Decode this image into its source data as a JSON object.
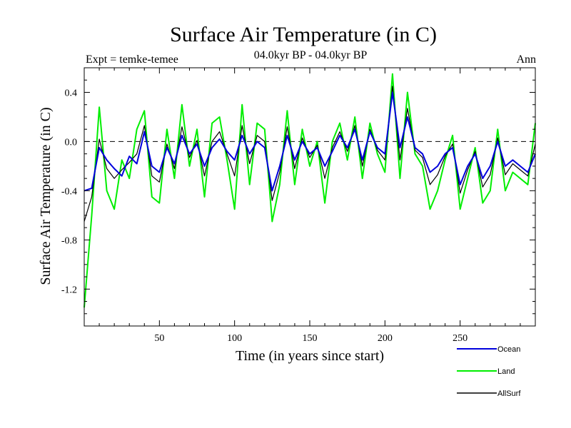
{
  "chart_data": {
    "type": "line",
    "title": "Surface Air Temperature (in C)",
    "subtitle": "04.0kyr BP - 04.0kyr BP",
    "left_label": "Expt = temke-temee",
    "right_label": "Ann",
    "xlabel": "Time (in years since start)",
    "ylabel": "Surface Air Temperature (in C)",
    "xlim": [
      0,
      300
    ],
    "ylim": [
      -1.5,
      0.6
    ],
    "xticks": [
      50,
      100,
      150,
      200,
      250
    ],
    "yticks": [
      0.4,
      0.0,
      -0.4,
      -0.8,
      -1.2
    ],
    "ytick_labels": [
      "0.4",
      "0.0",
      "-0.4",
      "-0.8",
      "-1.2"
    ],
    "reference_line": 0.0,
    "legend_position": "bottom-right",
    "series": [
      {
        "name": "Ocean",
        "color": "#0000dd",
        "x": [
          0,
          5,
          10,
          15,
          20,
          25,
          30,
          35,
          40,
          45,
          50,
          55,
          60,
          65,
          70,
          75,
          80,
          85,
          90,
          95,
          100,
          105,
          110,
          115,
          120,
          125,
          130,
          135,
          140,
          145,
          150,
          155,
          160,
          165,
          170,
          175,
          180,
          185,
          190,
          195,
          200,
          205,
          210,
          215,
          220,
          225,
          230,
          235,
          240,
          245,
          250,
          255,
          260,
          265,
          270,
          275,
          280,
          285,
          290,
          295,
          300
        ],
        "values": [
          -0.4,
          -0.38,
          -0.05,
          -0.15,
          -0.22,
          -0.28,
          -0.12,
          -0.18,
          0.08,
          -0.2,
          -0.25,
          -0.05,
          -0.18,
          0.05,
          -0.1,
          -0.02,
          -0.2,
          -0.05,
          0.02,
          -0.08,
          -0.15,
          0.05,
          -0.1,
          0.0,
          -0.05,
          -0.4,
          -0.2,
          0.05,
          -0.15,
          0.0,
          -0.1,
          -0.05,
          -0.2,
          -0.08,
          0.05,
          -0.05,
          0.1,
          -0.15,
          0.08,
          -0.05,
          -0.1,
          0.4,
          -0.05,
          0.2,
          -0.05,
          -0.1,
          -0.25,
          -0.2,
          -0.1,
          -0.05,
          -0.35,
          -0.2,
          -0.1,
          -0.3,
          -0.2,
          0.0,
          -0.2,
          -0.15,
          -0.2,
          -0.25,
          -0.1
        ]
      },
      {
        "name": "Land",
        "color": "#00ee00",
        "x": [
          0,
          5,
          10,
          15,
          20,
          25,
          30,
          35,
          40,
          45,
          50,
          55,
          60,
          65,
          70,
          75,
          80,
          85,
          90,
          95,
          100,
          105,
          110,
          115,
          120,
          125,
          130,
          135,
          140,
          145,
          150,
          155,
          160,
          165,
          170,
          175,
          180,
          185,
          190,
          195,
          200,
          205,
          210,
          215,
          220,
          225,
          230,
          235,
          240,
          245,
          250,
          255,
          260,
          265,
          270,
          275,
          280,
          285,
          290,
          295,
          300
        ],
        "values": [
          -1.35,
          -0.6,
          0.28,
          -0.4,
          -0.55,
          -0.15,
          -0.3,
          0.1,
          0.25,
          -0.45,
          -0.5,
          0.1,
          -0.3,
          0.3,
          -0.2,
          0.1,
          -0.45,
          0.15,
          0.2,
          -0.15,
          -0.55,
          0.3,
          -0.35,
          0.15,
          0.1,
          -0.65,
          -0.35,
          0.25,
          -0.35,
          0.1,
          -0.2,
          0.0,
          -0.5,
          0.0,
          0.15,
          -0.15,
          0.2,
          -0.3,
          0.15,
          -0.1,
          -0.25,
          0.55,
          -0.3,
          0.4,
          -0.1,
          -0.2,
          -0.55,
          -0.4,
          -0.15,
          0.05,
          -0.55,
          -0.3,
          -0.05,
          -0.5,
          -0.4,
          0.1,
          -0.4,
          -0.25,
          -0.3,
          -0.35,
          0.15
        ]
      },
      {
        "name": "AllSurf",
        "color": "#000000",
        "x": [
          0,
          5,
          10,
          15,
          20,
          25,
          30,
          35,
          40,
          45,
          50,
          55,
          60,
          65,
          70,
          75,
          80,
          85,
          90,
          95,
          100,
          105,
          110,
          115,
          120,
          125,
          130,
          135,
          140,
          145,
          150,
          155,
          160,
          165,
          170,
          175,
          180,
          185,
          190,
          195,
          200,
          205,
          210,
          215,
          220,
          225,
          230,
          235,
          240,
          245,
          250,
          255,
          260,
          265,
          270,
          275,
          280,
          285,
          290,
          295,
          300
        ],
        "values": [
          -0.65,
          -0.45,
          0.02,
          -0.22,
          -0.3,
          -0.23,
          -0.17,
          -0.1,
          0.13,
          -0.28,
          -0.33,
          -0.02,
          -0.22,
          0.12,
          -0.13,
          0.01,
          -0.28,
          0.0,
          0.08,
          -0.1,
          -0.28,
          0.13,
          -0.18,
          0.05,
          0.0,
          -0.48,
          -0.25,
          0.12,
          -0.22,
          0.03,
          -0.13,
          -0.03,
          -0.3,
          -0.05,
          0.08,
          -0.08,
          0.13,
          -0.2,
          0.1,
          -0.07,
          -0.15,
          0.45,
          -0.15,
          0.27,
          -0.07,
          -0.13,
          -0.35,
          -0.27,
          -0.12,
          -0.02,
          -0.42,
          -0.23,
          -0.08,
          -0.37,
          -0.27,
          0.03,
          -0.27,
          -0.18,
          -0.23,
          -0.28,
          -0.02
        ]
      }
    ]
  }
}
